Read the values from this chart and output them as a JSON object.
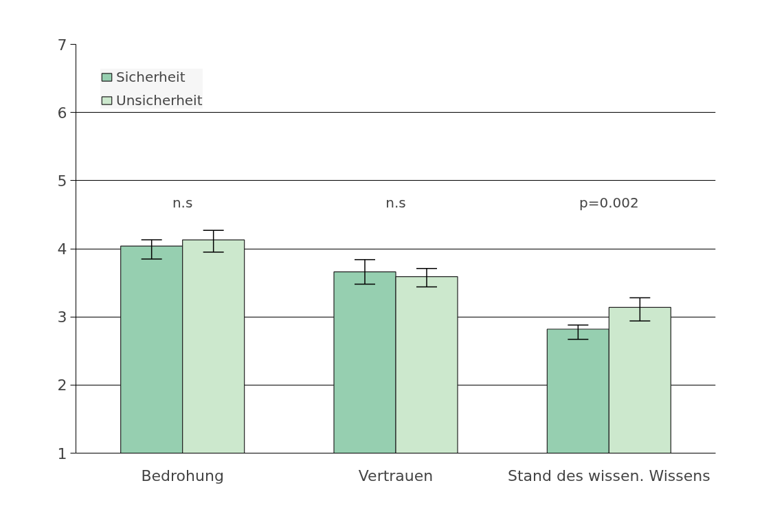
{
  "chart_data": {
    "type": "bar",
    "categories": [
      "Bedrohung",
      "Vertrauen",
      "Stand des wissen. Wissens"
    ],
    "series": [
      {
        "name": "Sicherheit",
        "color": "#96cfb0",
        "values": [
          4.04,
          3.66,
          2.82
        ],
        "errors": [
          [
            3.85,
            4.13
          ],
          [
            3.48,
            3.84
          ],
          [
            2.67,
            2.88
          ]
        ]
      },
      {
        "name": "Unsicherheit",
        "color": "#cce8cd",
        "values": [
          4.13,
          3.59,
          3.14
        ],
        "errors": [
          [
            3.95,
            4.27
          ],
          [
            3.44,
            3.71
          ],
          [
            2.94,
            3.28
          ]
        ]
      }
    ],
    "annotations": [
      "n.s",
      "n.s",
      "p=0.002"
    ],
    "ylim": [
      1,
      7
    ],
    "yticks": [
      1,
      2,
      3,
      4,
      5,
      6,
      7
    ],
    "grid": "y",
    "legend": "top left"
  }
}
